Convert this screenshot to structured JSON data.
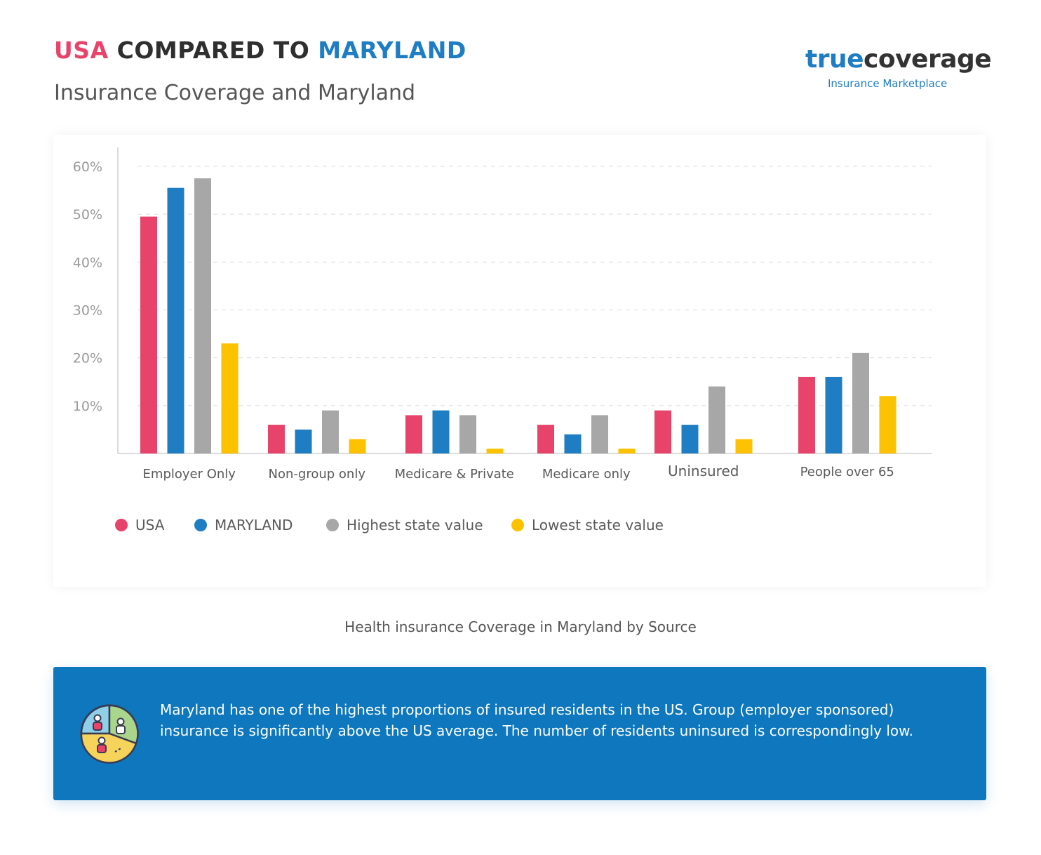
{
  "header": {
    "title_part1": "USA",
    "title_part2": " COMPARED TO ",
    "title_part3": "MARYLAND",
    "subtitle": "Insurance Coverage and Maryland"
  },
  "logo": {
    "brand_part1": "true",
    "brand_part2": "coverage",
    "trademark": "™",
    "tagline": "Insurance Marketplace"
  },
  "colors": {
    "usa": "#e8436a",
    "maryland": "#1f7dc4",
    "highest": "#a7a7a7",
    "lowest": "#fcc200",
    "info_bg": "#0e77bd"
  },
  "chart_data": {
    "type": "bar",
    "title": "",
    "xlabel": "",
    "ylabel": "",
    "ylim": [
      0,
      60
    ],
    "yticks": [
      10,
      20,
      30,
      40,
      50,
      60
    ],
    "ytick_labels": [
      "10%",
      "20%",
      "30%",
      "40%",
      "50%",
      "60%"
    ],
    "grid": true,
    "legend_position": "bottom-left",
    "categories": [
      "Employer Only",
      "Non-group only",
      "Medicare & Private",
      "Medicare only",
      "Uninsured",
      "People over 65"
    ],
    "series": [
      {
        "name": "USA",
        "color": "#e8436a",
        "values": [
          49.5,
          6,
          8,
          6,
          9,
          16
        ]
      },
      {
        "name": "MARYLAND",
        "color": "#1f7dc4",
        "values": [
          55.5,
          5,
          9,
          4,
          6,
          16
        ]
      },
      {
        "name": "Highest state value",
        "color": "#a7a7a7",
        "values": [
          57.5,
          9,
          8,
          8,
          14,
          21
        ]
      },
      {
        "name": "Lowest state value",
        "color": "#fcc200",
        "values": [
          23,
          3,
          1,
          1,
          3,
          12
        ]
      }
    ]
  },
  "caption": "Health insurance Coverage in Maryland by Source",
  "info": {
    "icon": "pie-chart-people-icon",
    "text": "Maryland has one of the highest proportions of insured residents in the US.  Group (employer sponsored) insurance is significantly above the US average.  The number of residents uninsured is correspondingly low."
  }
}
